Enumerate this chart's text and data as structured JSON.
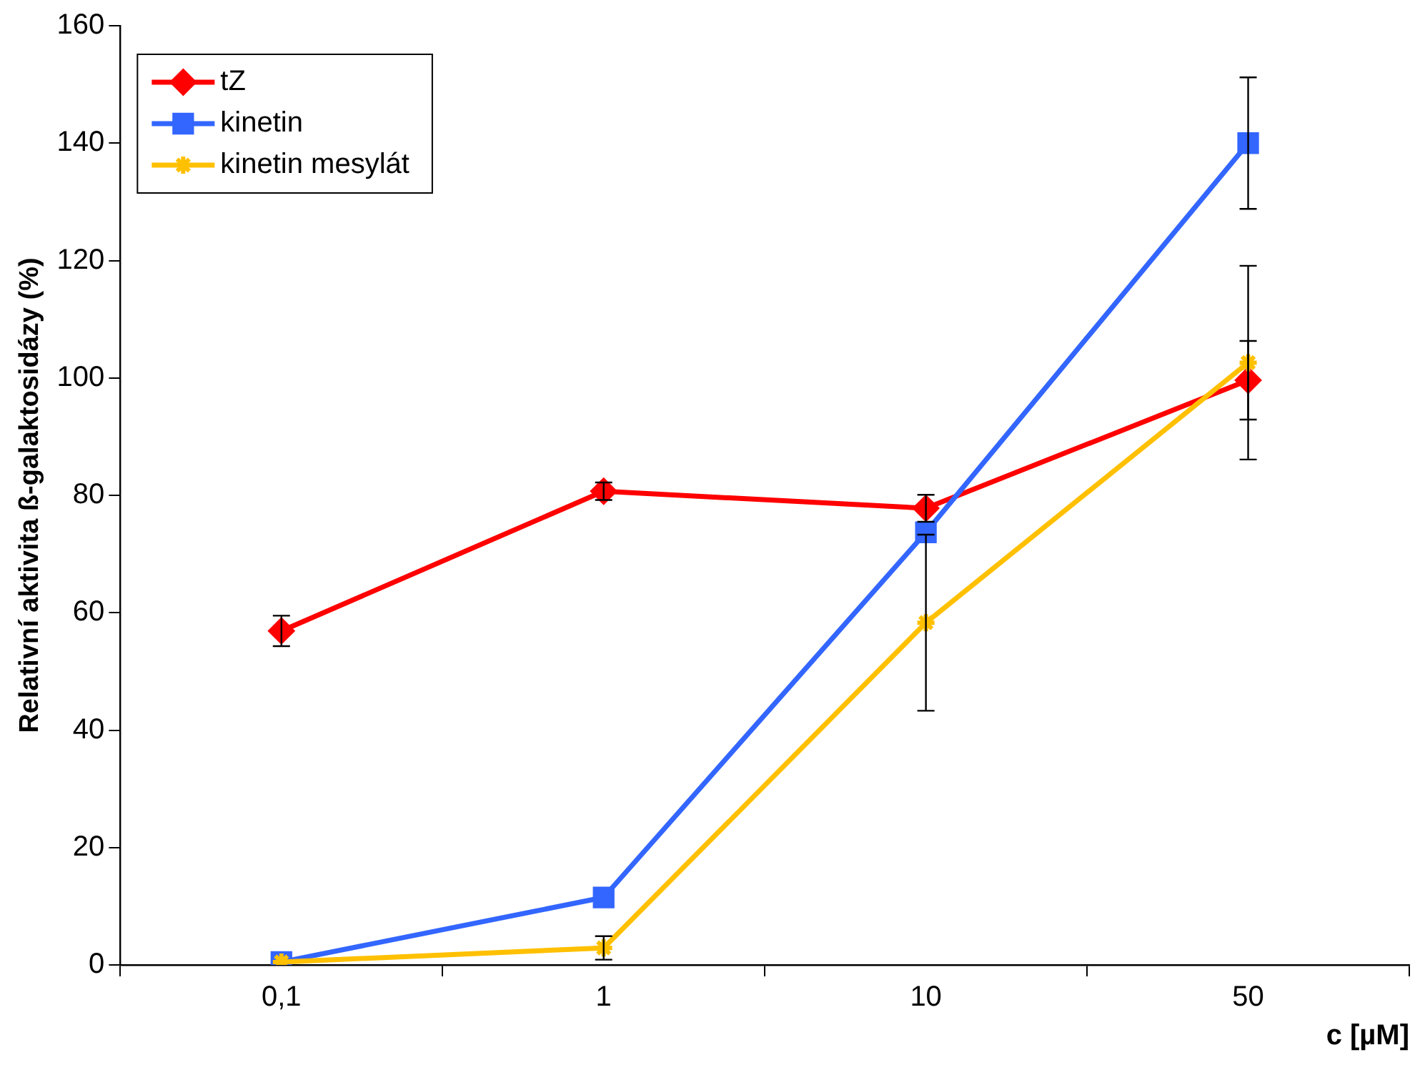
{
  "chart_data": {
    "type": "line",
    "xlabel": "c [µM]",
    "ylabel": "Relativní aktivita ß-galaktosidázy (%)",
    "categories": [
      "0,1",
      "1",
      "10",
      "50"
    ],
    "series": [
      {
        "name": "tZ",
        "color": "#ff0000",
        "marker": "diamond",
        "values": [
          56.9,
          80.7,
          77.8,
          99.6
        ],
        "errors": [
          2.6,
          1.5,
          2.3,
          6.7
        ]
      },
      {
        "name": "kinetin",
        "color": "#3366ff",
        "marker": "square",
        "values": [
          0.5,
          11.5,
          73.7,
          140
        ],
        "errors": [
          null,
          null,
          null,
          11.2
        ]
      },
      {
        "name": "kinetin mesylát",
        "color": "#ffc000",
        "marker": "cross",
        "values": [
          0.5,
          2.9,
          58.3,
          102.6
        ],
        "errors": [
          null,
          2,
          15,
          16.5
        ]
      }
    ],
    "ylim": [
      0,
      160
    ],
    "yticks": [
      0,
      20,
      40,
      60,
      80,
      100,
      120,
      140,
      160
    ],
    "grid": false,
    "legend": "top left",
    "line_style": "solid"
  }
}
